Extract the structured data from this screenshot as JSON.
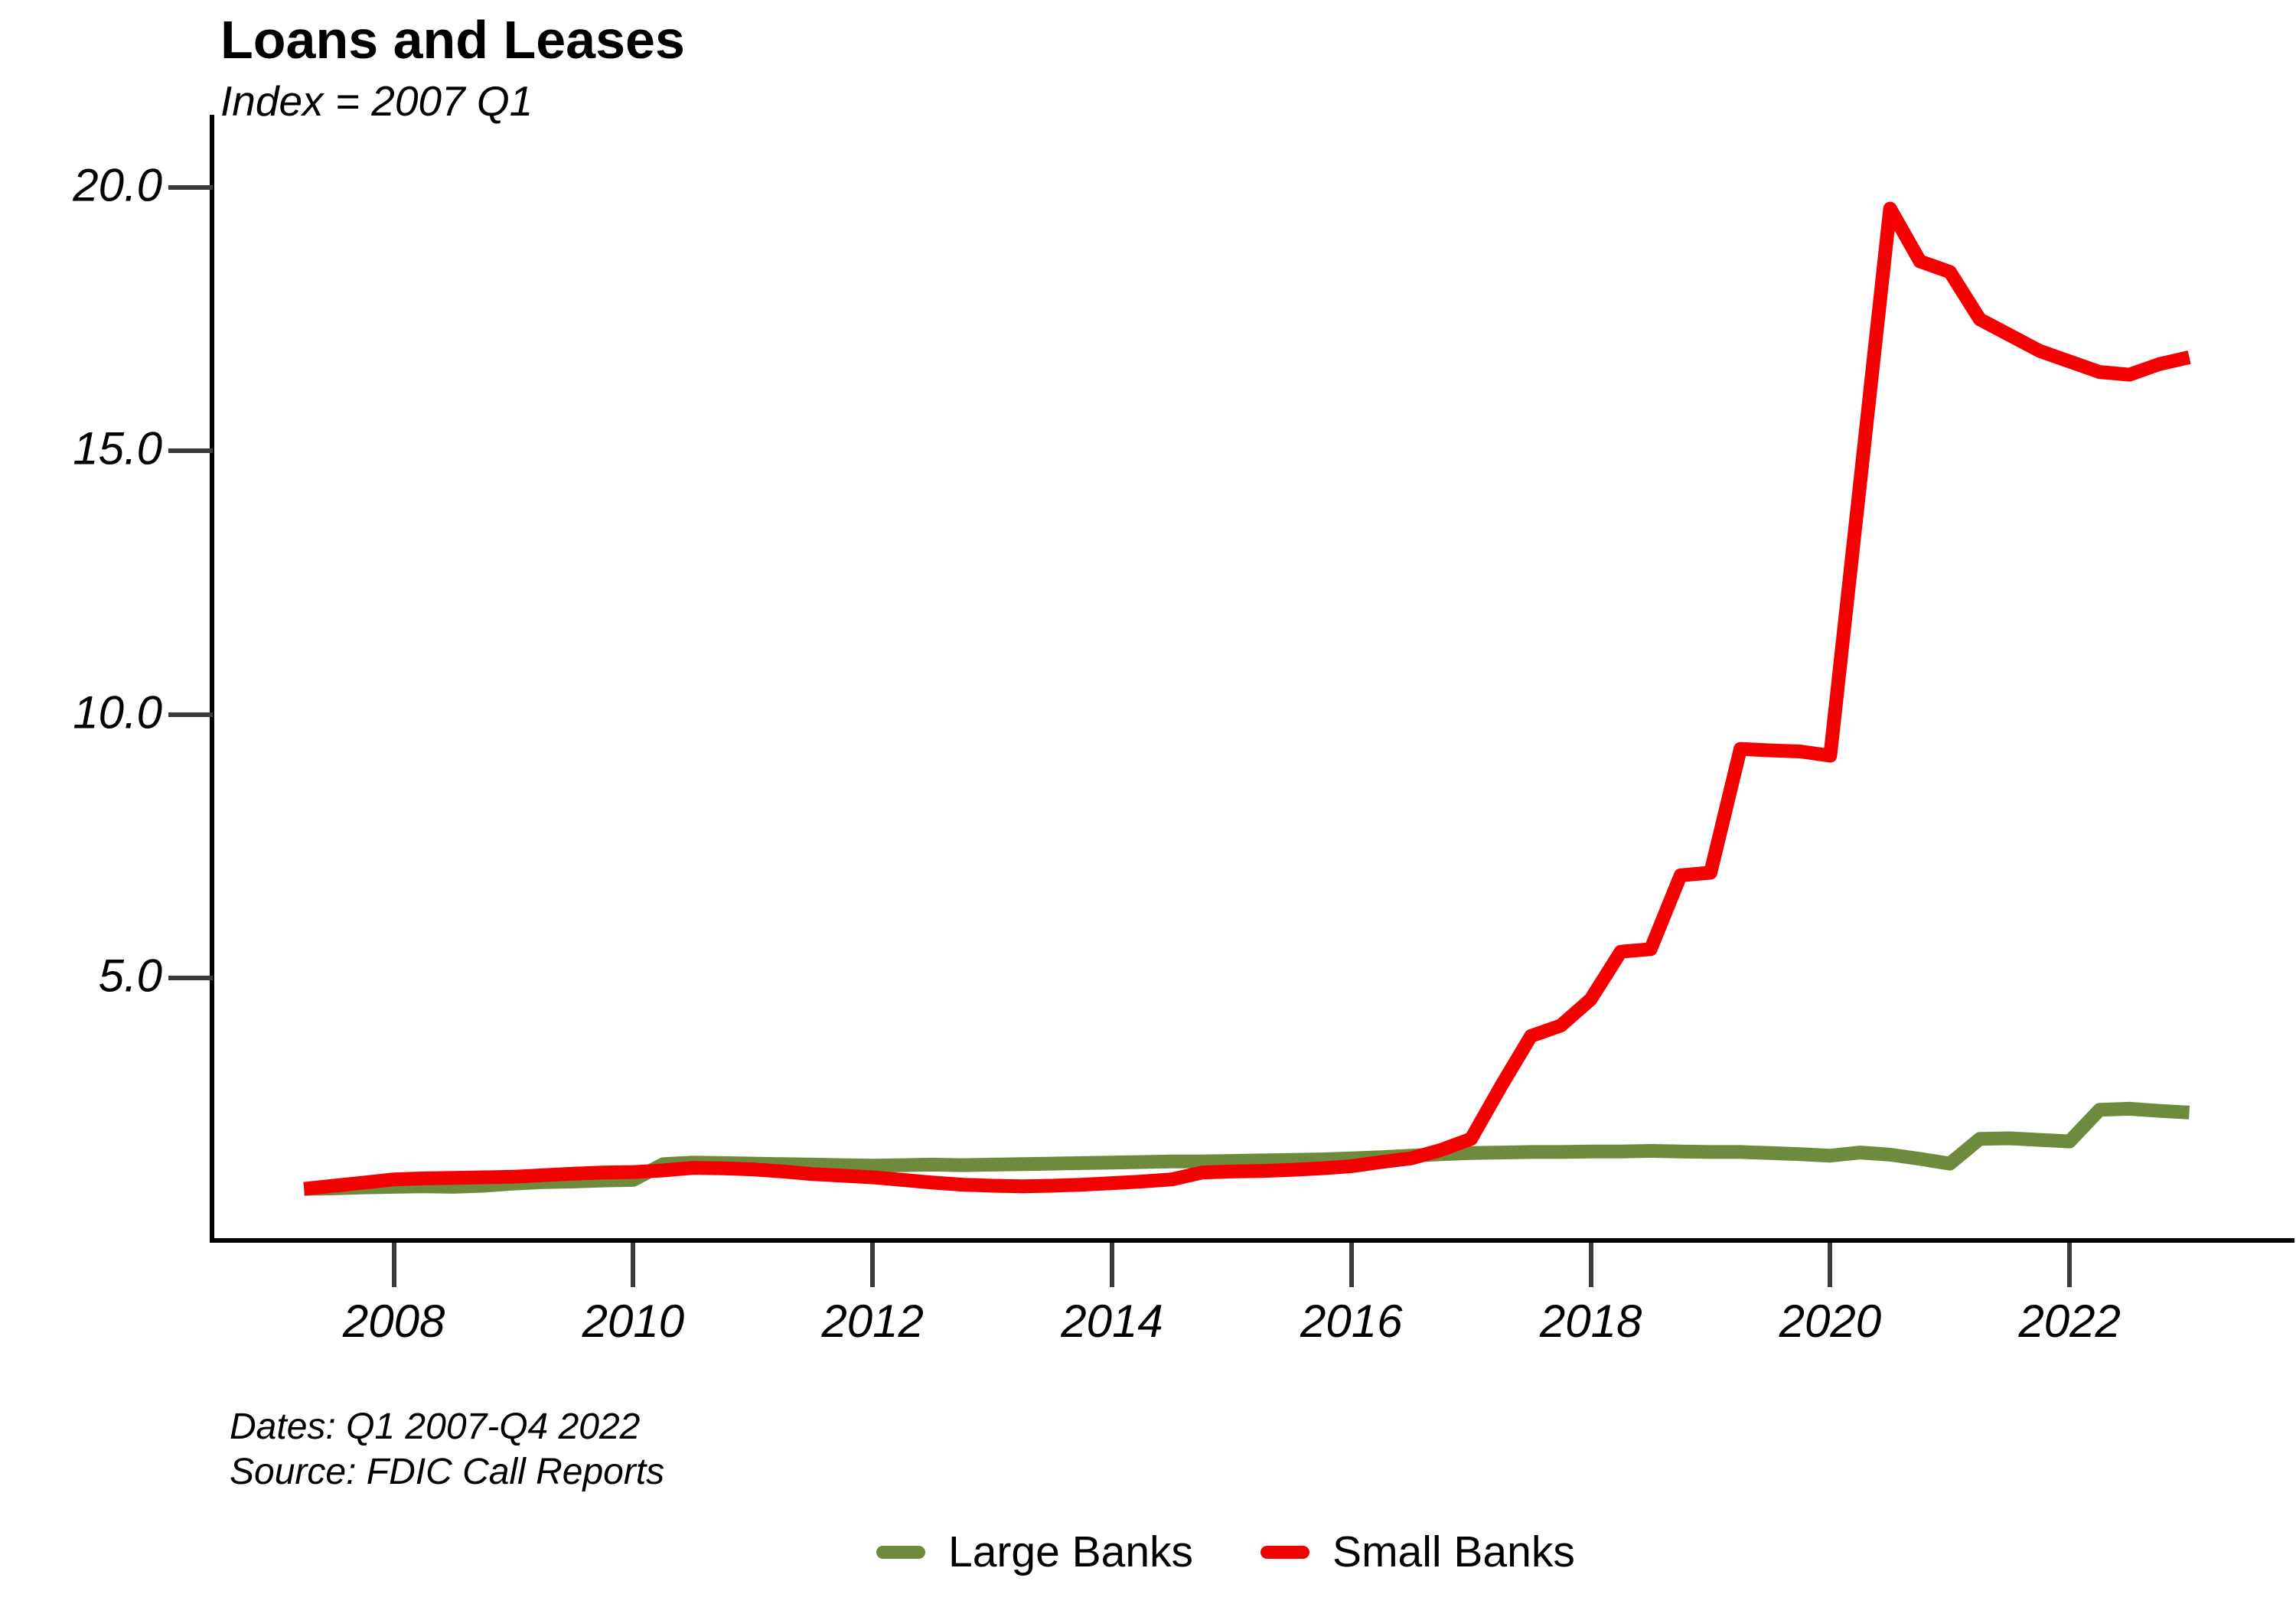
{
  "chart_data": {
    "type": "line",
    "title": "Loans and Leases",
    "subtitle": "Index = 2007 Q1",
    "notes": [
      "Dates: Q1 2007-Q4 2022",
      "Source: FDIC Call Reports"
    ],
    "legend_position": "bottom-center",
    "grid": false,
    "xlabel": "",
    "ylabel": "",
    "ylim": [
      0,
      21.4
    ],
    "y_ticks": [
      {
        "value": 20,
        "label": "20.0"
      },
      {
        "value": 15,
        "label": "15.0"
      },
      {
        "value": 10,
        "label": "10.0"
      },
      {
        "value": 5,
        "label": "5.0"
      }
    ],
    "x_ticks": [
      {
        "value": 2008,
        "label": "2008"
      },
      {
        "value": 2010,
        "label": "2010"
      },
      {
        "value": 2012,
        "label": "2012"
      },
      {
        "value": 2014,
        "label": "2014"
      },
      {
        "value": 2016,
        "label": "2016"
      },
      {
        "value": 2018,
        "label": "2018"
      },
      {
        "value": 2020,
        "label": "2020"
      },
      {
        "value": 2022,
        "label": "2022"
      }
    ],
    "frequency": "quarterly",
    "periods": [
      "2007 Q1",
      "2007 Q2",
      "2007 Q3",
      "2007 Q4",
      "2008 Q1",
      "2008 Q2",
      "2008 Q3",
      "2008 Q4",
      "2009 Q1",
      "2009 Q2",
      "2009 Q3",
      "2009 Q4",
      "2010 Q1",
      "2010 Q2",
      "2010 Q3",
      "2010 Q4",
      "2011 Q1",
      "2011 Q2",
      "2011 Q3",
      "2011 Q4",
      "2012 Q1",
      "2012 Q2",
      "2012 Q3",
      "2012 Q4",
      "2013 Q1",
      "2013 Q2",
      "2013 Q3",
      "2013 Q4",
      "2014 Q1",
      "2014 Q2",
      "2014 Q3",
      "2014 Q4",
      "2015 Q1",
      "2015 Q2",
      "2015 Q3",
      "2015 Q4",
      "2016 Q1",
      "2016 Q2",
      "2016 Q3",
      "2016 Q4",
      "2017 Q1",
      "2017 Q2",
      "2017 Q3",
      "2017 Q4",
      "2018 Q1",
      "2018 Q2",
      "2018 Q3",
      "2018 Q4",
      "2019 Q1",
      "2019 Q2",
      "2019 Q3",
      "2019 Q4",
      "2020 Q1",
      "2020 Q2",
      "2020 Q3",
      "2020 Q4",
      "2021 Q1",
      "2021 Q2",
      "2021 Q3",
      "2021 Q4",
      "2022 Q1",
      "2022 Q2",
      "2022 Q3",
      "2022 Q4"
    ],
    "series": [
      {
        "name": "Large Banks",
        "color": "#6e8b3d",
        "values": [
          1.0,
          1.01,
          1.03,
          1.04,
          1.05,
          1.04,
          1.06,
          1.1,
          1.13,
          1.14,
          1.16,
          1.17,
          1.47,
          1.5,
          1.49,
          1.48,
          1.47,
          1.46,
          1.45,
          1.44,
          1.45,
          1.46,
          1.45,
          1.46,
          1.47,
          1.48,
          1.49,
          1.5,
          1.51,
          1.52,
          1.52,
          1.53,
          1.54,
          1.55,
          1.56,
          1.58,
          1.6,
          1.63,
          1.66,
          1.68,
          1.69,
          1.7,
          1.7,
          1.71,
          1.71,
          1.72,
          1.71,
          1.7,
          1.7,
          1.68,
          1.66,
          1.63,
          1.69,
          1.65,
          1.57,
          1.48,
          1.95,
          1.96,
          1.93,
          1.9,
          2.5,
          2.52,
          2.48,
          2.45
        ]
      },
      {
        "name": "Small Banks",
        "color": "#f50000",
        "values": [
          1.0,
          1.06,
          1.12,
          1.18,
          1.2,
          1.21,
          1.22,
          1.23,
          1.26,
          1.29,
          1.31,
          1.32,
          1.35,
          1.4,
          1.39,
          1.37,
          1.33,
          1.28,
          1.25,
          1.22,
          1.17,
          1.12,
          1.08,
          1.06,
          1.05,
          1.06,
          1.08,
          1.11,
          1.14,
          1.18,
          1.31,
          1.33,
          1.34,
          1.36,
          1.39,
          1.43,
          1.51,
          1.58,
          1.74,
          1.95,
          2.95,
          3.9,
          4.1,
          4.6,
          5.5,
          5.55,
          6.95,
          7.0,
          9.35,
          9.32,
          9.3,
          9.22,
          14.4,
          19.6,
          18.6,
          18.4,
          17.5,
          17.2,
          16.9,
          16.7,
          16.5,
          16.45,
          16.65,
          16.78
        ]
      }
    ]
  }
}
